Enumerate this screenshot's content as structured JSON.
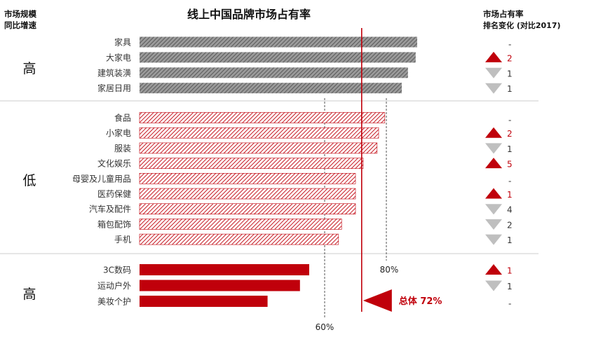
{
  "chart_data": {
    "type": "bar",
    "orientation": "horizontal",
    "title": "线上中国品牌市场占有率",
    "left_header": [
      "市场规模",
      "同比增速"
    ],
    "right_header": [
      "市场占有率",
      "排名变化 (对比2017)"
    ],
    "xlim": [
      0,
      100
    ],
    "groups": [
      {
        "label": "高",
        "style": "gray-hatched",
        "categories": [
          "家具",
          "大家电",
          "建筑装潢",
          "家居日用"
        ],
        "values": [
          90,
          89.5,
          87,
          85
        ],
        "rank_change": [
          {
            "direction": "none",
            "value": "-"
          },
          {
            "direction": "up",
            "value": "2"
          },
          {
            "direction": "down",
            "value": "1"
          },
          {
            "direction": "down",
            "value": "1"
          }
        ]
      },
      {
        "label": "低",
        "style": "red-hatched",
        "categories": [
          "食品",
          "小家电",
          "服装",
          "文化娱乐",
          "母婴及儿童用品",
          "医药保健",
          "汽车及配件",
          "箱包配饰",
          "手机"
        ],
        "values": [
          79.5,
          77.5,
          77,
          72.5,
          70,
          70,
          70,
          65.5,
          64.5
        ],
        "rank_change": [
          {
            "direction": "none",
            "value": "-"
          },
          {
            "direction": "up",
            "value": "2"
          },
          {
            "direction": "down",
            "value": "1"
          },
          {
            "direction": "up",
            "value": "5"
          },
          {
            "direction": "none",
            "value": "-"
          },
          {
            "direction": "up",
            "value": "1"
          },
          {
            "direction": "down",
            "value": "4"
          },
          {
            "direction": "down",
            "value": "2"
          },
          {
            "direction": "down",
            "value": "1"
          }
        ]
      },
      {
        "label": "高",
        "style": "red-solid",
        "categories": [
          "3C数码",
          "运动户外",
          "美妆个护"
        ],
        "values": [
          55,
          52,
          41.5
        ],
        "rank_change": [
          {
            "direction": "up",
            "value": "1"
          },
          {
            "direction": "down",
            "value": "1"
          },
          {
            "direction": "none",
            "value": "-"
          }
        ]
      }
    ],
    "reference_lines": [
      {
        "value": 60,
        "label": "60%"
      },
      {
        "value": 80,
        "label": "80%"
      }
    ],
    "overall": {
      "value": 72,
      "label": "总体 72%"
    },
    "colors": {
      "red": "#c0000b",
      "gray": "#9a9a9a",
      "gray_hatch": "#4a4a4a",
      "red_hatch_bg": "#ffffff",
      "divider": "#cccccc",
      "ref_line": "#555555",
      "down_arrow": "#bfbfbf"
    }
  }
}
